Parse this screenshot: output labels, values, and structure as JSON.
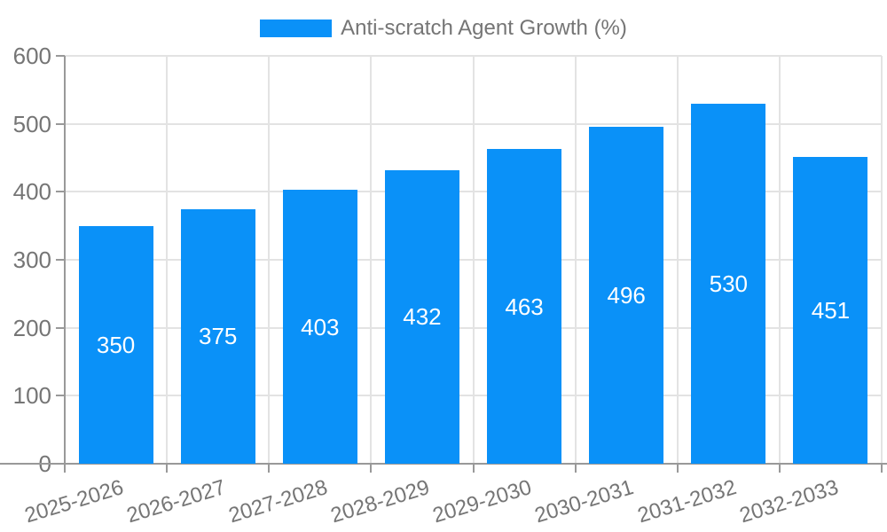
{
  "chart_data": {
    "type": "bar",
    "title": "",
    "legend": {
      "position": "top-center",
      "label": "Anti-scratch Agent Growth (%)"
    },
    "categories": [
      "2025-2026",
      "2026-2027",
      "2027-2028",
      "2028-2029",
      "2029-2030",
      "2030-2031",
      "2031-2032",
      "2032-2033"
    ],
    "series": [
      {
        "name": "Anti-scratch Agent Growth (%)",
        "values": [
          350,
          375,
          403,
          432,
          463,
          496,
          530,
          451
        ]
      }
    ],
    "value_labels_shown": true,
    "xlabel": "",
    "ylabel": "",
    "ylim": [
      0,
      600
    ],
    "yticks": [
      0,
      100,
      200,
      300,
      400,
      500,
      600
    ],
    "grid": true,
    "colors": {
      "bar": "#0a91f8",
      "value_label": "#ffffff",
      "axis": "#999999",
      "gridline": "#e3e3e3",
      "text": "#757575"
    }
  }
}
